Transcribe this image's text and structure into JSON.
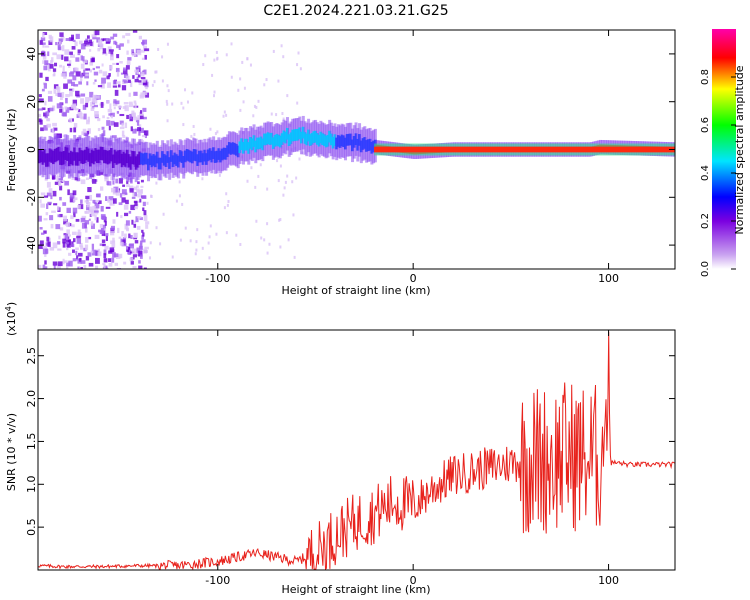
{
  "title": "C2E1.2024.221.03.21.G25",
  "chart_data": [
    {
      "type": "heatmap",
      "xlabel": "Height of straight line (km)",
      "ylabel": "Frequency (Hz)",
      "xlim": [
        -192,
        134
      ],
      "ylim": [
        -50,
        50
      ],
      "xticks": [
        -100,
        0,
        100
      ],
      "yticks": [
        -40,
        -20,
        0,
        20,
        40
      ],
      "colorbar": {
        "label": "Normalized spectral amplitude",
        "range": [
          0,
          1
        ],
        "ticks": [
          "0.0",
          "0.2",
          "0.4",
          "0.6",
          "0.8"
        ],
        "colormap": [
          "#ffffff",
          "#8a2be2",
          "#0000ff",
          "#00ffff",
          "#00ff00",
          "#ffff00",
          "#ff0000",
          "#ff00ff"
        ]
      },
      "ridge": {
        "x": [
          -192,
          -160,
          -140,
          -120,
          -100,
          -80,
          -60,
          -45,
          -30,
          -20,
          -10,
          0,
          20,
          60,
          90,
          95,
          134
        ],
        "y": [
          -3,
          -3,
          -5,
          -4,
          -2,
          3,
          6,
          4,
          3,
          1,
          0,
          -1,
          0,
          0,
          0,
          1,
          0
        ]
      }
    },
    {
      "type": "line",
      "xlabel": "Height of straight line (km)",
      "ylabel": "SNR (10 * v/v)",
      "scale_label": "(x10",
      "scale_exp": "4",
      "xlim": [
        -192,
        134
      ],
      "ylim": [
        0,
        2.8
      ],
      "xticks": [
        -100,
        0,
        100
      ],
      "yticks": [
        "0.5",
        "1.0",
        "1.5",
        "2.0",
        "2.5"
      ],
      "series": [
        {
          "color": "#e8221c",
          "x": [
            -192,
            -180,
            -160,
            -140,
            -120,
            -100,
            -80,
            -70,
            -60,
            -50,
            -40,
            -30,
            -20,
            -10,
            0,
            10,
            20,
            30,
            40,
            50,
            60,
            70,
            80,
            90,
            95,
            100,
            105,
            110,
            120,
            134
          ],
          "y": [
            0.05,
            0.04,
            0.04,
            0.05,
            0.05,
            0.1,
            0.2,
            0.15,
            0.1,
            0.2,
            0.4,
            0.55,
            0.65,
            0.8,
            0.75,
            0.95,
            1.1,
            1.15,
            1.2,
            1.25,
            1.3,
            1.3,
            1.35,
            1.3,
            1.3,
            1.25,
            1.25,
            1.23,
            1.23,
            1.23
          ]
        }
      ]
    }
  ]
}
